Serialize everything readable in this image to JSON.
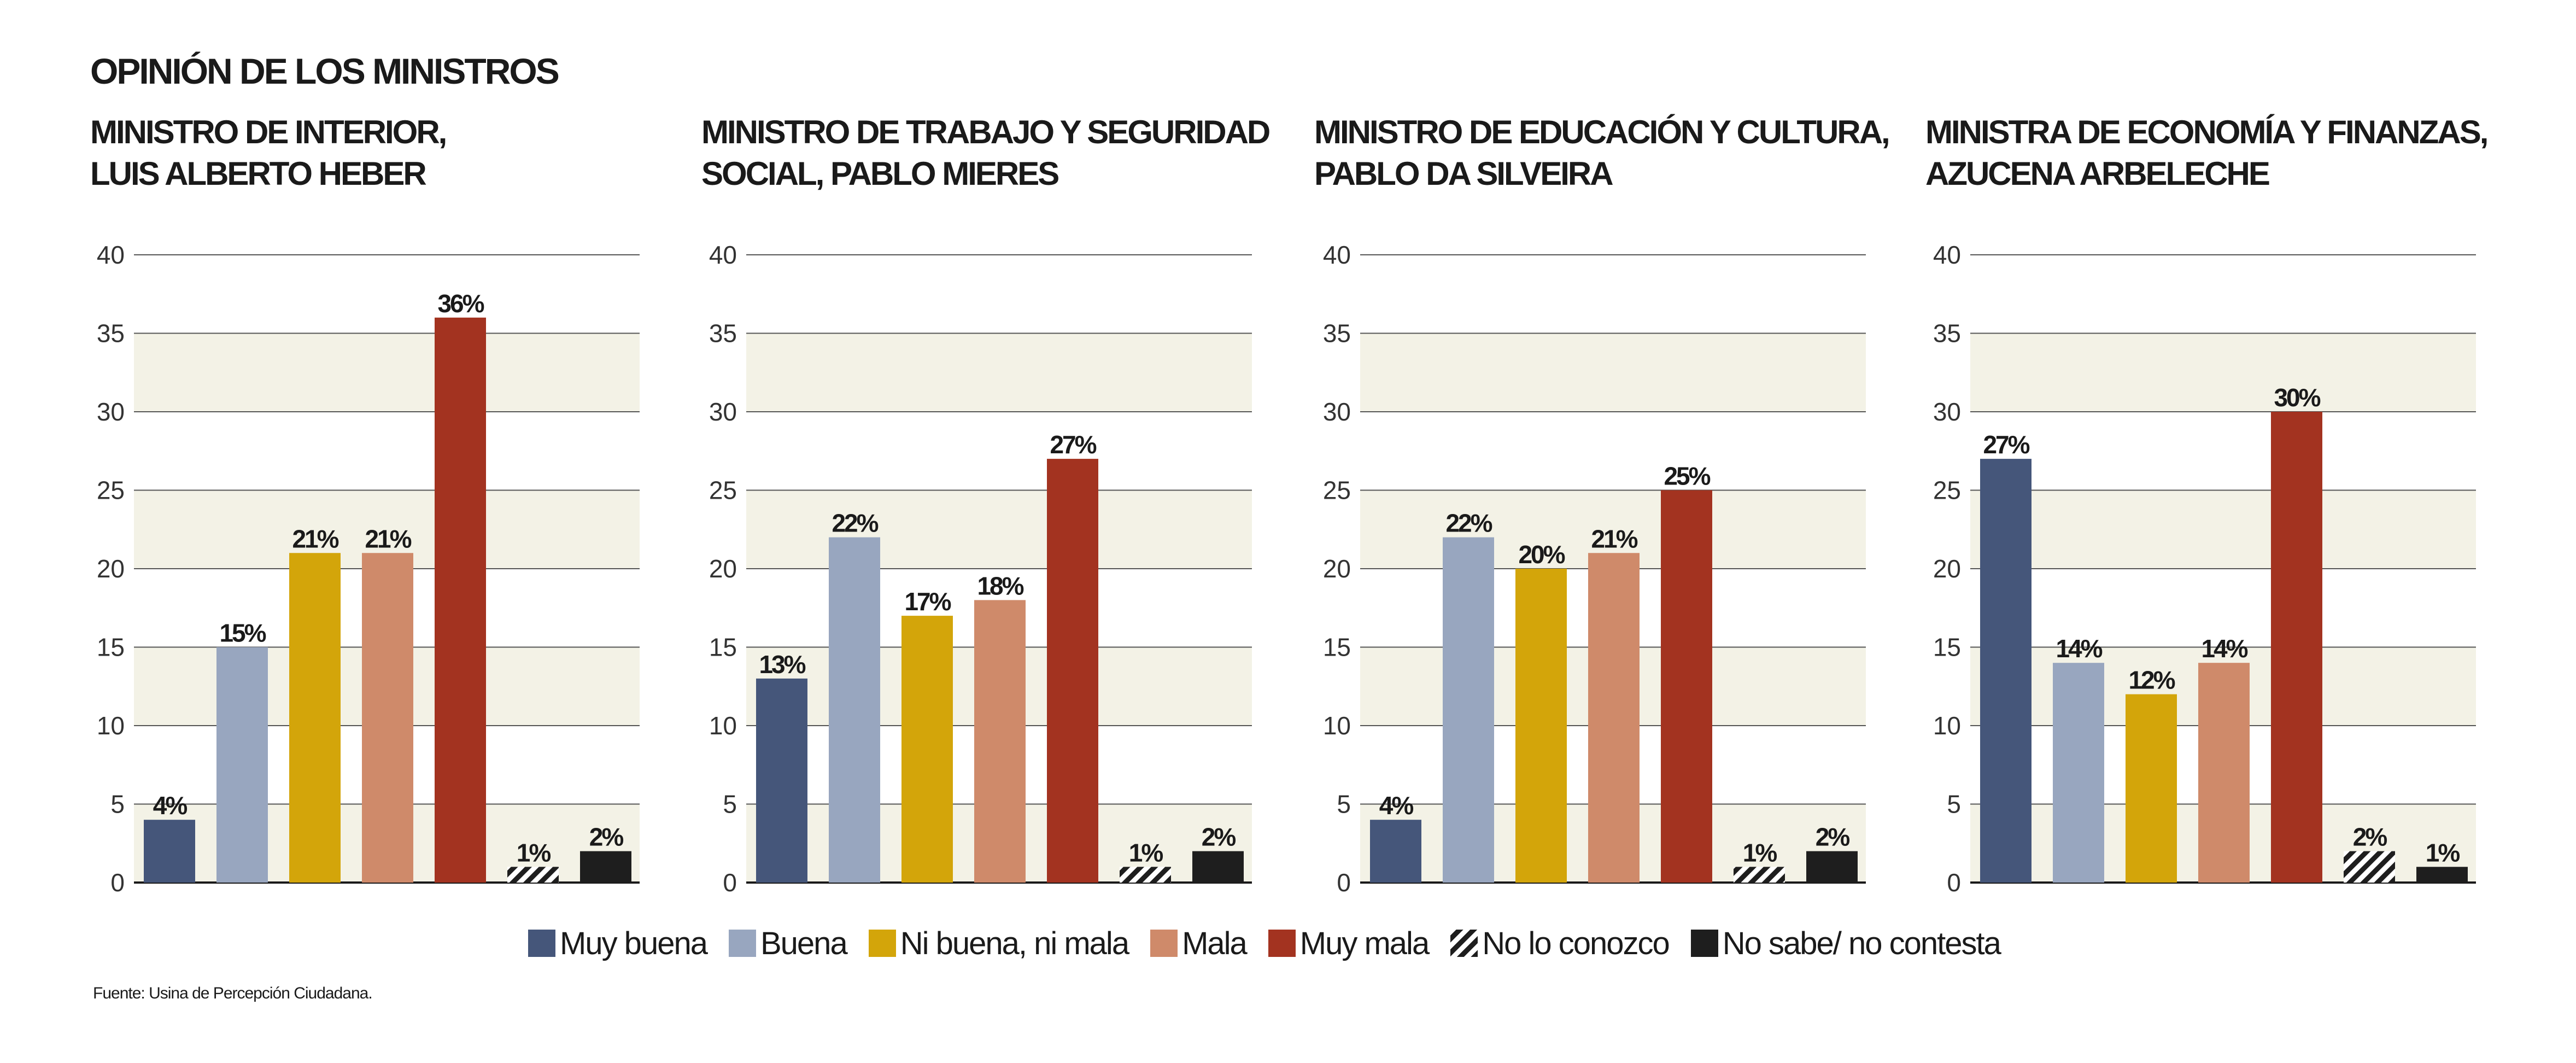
{
  "title": "OPINIÓN DE LOS MINISTROS",
  "panels": [
    {
      "title_line1": "MINISTRO DE INTERIOR,",
      "title_line2": "LUIS ALBERTO HEBER"
    },
    {
      "title_line1": "MINISTRO DE TRABAJO Y SEGURIDAD",
      "title_line2": "SOCIAL, PABLO MIERES"
    },
    {
      "title_line1": "MINISTRO DE EDUCACIÓN Y CULTURA,",
      "title_line2": "PABLO DA SILVEIRA"
    },
    {
      "title_line1": "MINISTRA DE ECONOMÍA Y FINANZAS,",
      "title_line2": "AZUCENA ARBELECHE"
    }
  ],
  "legend": [
    {
      "label": "Muy buena",
      "color": "#45567a"
    },
    {
      "label": "Buena",
      "color": "#98a6bf"
    },
    {
      "label": "Ni buena, ni mala",
      "color": "#d3a50a"
    },
    {
      "label": "Mala",
      "color": "#cf8a6a"
    },
    {
      "label": "Muy mala",
      "color": "#a33320"
    },
    {
      "label": "No lo conozco",
      "color": "hatch"
    },
    {
      "label": "No sabe/ no contesta",
      "color": "#1e1e1e"
    }
  ],
  "source": "Fuente: Usina de Percepción Ciudadana.",
  "chart_data": [
    {
      "type": "bar",
      "title": "MINISTRO DE INTERIOR, LUIS ALBERTO HEBER",
      "categories": [
        "Muy buena",
        "Buena",
        "Ni buena, ni mala",
        "Mala",
        "Muy mala",
        "No lo conozco",
        "No sabe/ no contesta"
      ],
      "values": [
        4,
        15,
        21,
        21,
        36,
        1,
        2
      ],
      "labels": [
        "4%",
        "15%",
        "21%",
        "21%",
        "36%",
        "1%",
        "2%"
      ],
      "ylim": [
        0,
        40
      ],
      "yticks": [
        "0",
        "5",
        "10",
        "15",
        "20",
        "25",
        "30",
        "35",
        "40"
      ],
      "grid": true
    },
    {
      "type": "bar",
      "title": "MINISTRO DE TRABAJO Y SEGURIDAD SOCIAL, PABLO MIERES",
      "categories": [
        "Muy buena",
        "Buena",
        "Ni buena, ni mala",
        "Mala",
        "Muy mala",
        "No lo conozco",
        "No sabe/ no contesta"
      ],
      "values": [
        13,
        22,
        17,
        18,
        27,
        1,
        2
      ],
      "labels": [
        "13%",
        "22%",
        "17%",
        "18%",
        "27%",
        "1%",
        "2%"
      ],
      "ylim": [
        0,
        40
      ],
      "yticks": [
        "0",
        "5",
        "10",
        "15",
        "20",
        "25",
        "30",
        "35",
        "40"
      ],
      "grid": true
    },
    {
      "type": "bar",
      "title": "MINISTRO DE EDUCACIÓN Y CULTURA, PABLO DA SILVEIRA",
      "categories": [
        "Muy buena",
        "Buena",
        "Ni buena, ni mala",
        "Mala",
        "Muy mala",
        "No lo conozco",
        "No sabe/ no contesta"
      ],
      "values": [
        4,
        22,
        20,
        21,
        25,
        1,
        2
      ],
      "labels": [
        "4%",
        "22%",
        "20%",
        "21%",
        "25%",
        "1%",
        "2%"
      ],
      "ylim": [
        0,
        40
      ],
      "yticks": [
        "0",
        "5",
        "10",
        "15",
        "20",
        "25",
        "30",
        "35",
        "40"
      ],
      "grid": true
    },
    {
      "type": "bar",
      "title": "MINISTRA DE ECONOMÍA Y FINANZAS, AZUCENA ARBELECHE",
      "categories": [
        "Muy buena",
        "Buena",
        "Ni buena, ni mala",
        "Mala",
        "Muy mala",
        "No lo conozco",
        "No sabe/ no contesta"
      ],
      "values": [
        27,
        14,
        12,
        14,
        30,
        2,
        1
      ],
      "labels": [
        "27%",
        "14%",
        "12%",
        "14%",
        "30%",
        "2%",
        "1%"
      ],
      "ylim": [
        0,
        40
      ],
      "yticks": [
        "0",
        "5",
        "10",
        "15",
        "20",
        "25",
        "30",
        "35",
        "40"
      ],
      "grid": true
    }
  ]
}
